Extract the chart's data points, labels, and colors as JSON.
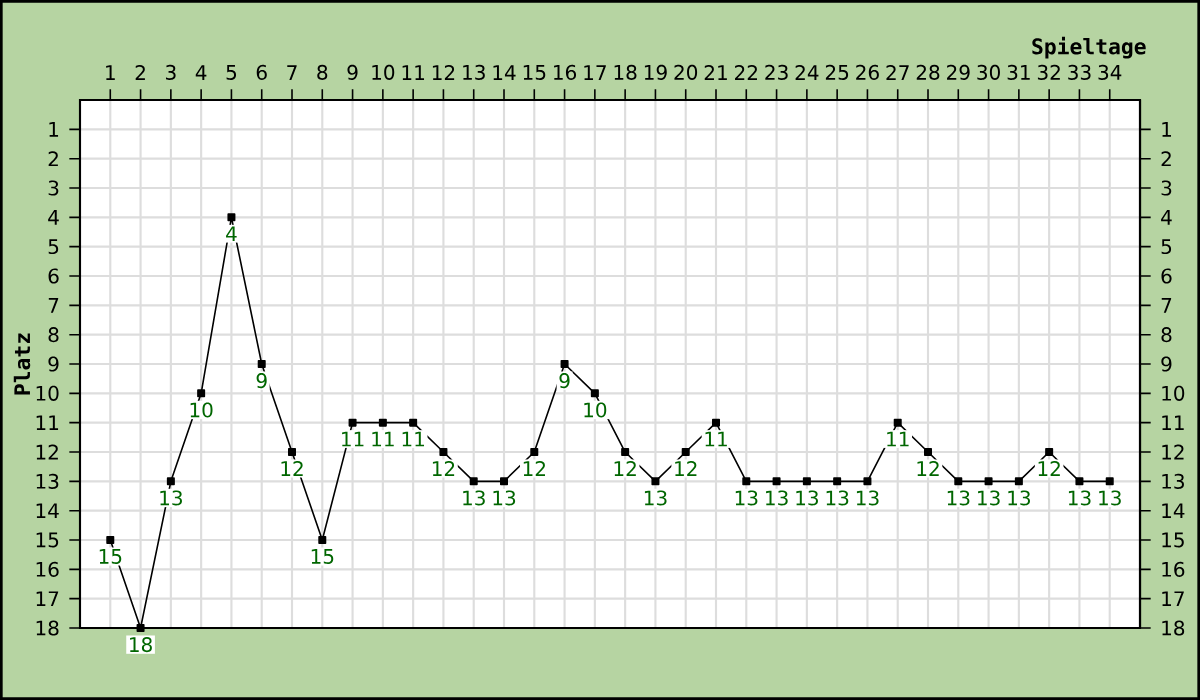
{
  "chart_data": {
    "type": "line",
    "xlabel": "Spieltage",
    "ylabel": "Platz",
    "x": [
      1,
      2,
      3,
      4,
      5,
      6,
      7,
      8,
      9,
      10,
      11,
      12,
      13,
      14,
      15,
      16,
      17,
      18,
      19,
      20,
      21,
      22,
      23,
      24,
      25,
      26,
      27,
      28,
      29,
      30,
      31,
      32,
      33,
      34
    ],
    "series": [
      {
        "color": "#000000",
        "values": [
          15,
          18,
          13,
          10,
          4,
          9,
          12,
          15,
          11,
          11,
          11,
          12,
          13,
          13,
          12,
          9,
          10,
          12,
          13,
          12,
          11,
          13,
          13,
          13,
          13,
          13,
          11,
          12,
          13,
          13,
          13,
          12,
          13,
          13
        ]
      }
    ],
    "xlim": [
      0,
      35
    ],
    "ylim": [
      18,
      0
    ],
    "xticks": [
      1,
      2,
      3,
      4,
      5,
      6,
      7,
      8,
      9,
      10,
      11,
      12,
      13,
      14,
      15,
      16,
      17,
      18,
      19,
      20,
      21,
      22,
      23,
      24,
      25,
      26,
      27,
      28,
      29,
      30,
      31,
      32,
      33,
      34
    ],
    "yticks": [
      1,
      2,
      3,
      4,
      5,
      6,
      7,
      8,
      9,
      10,
      11,
      12,
      13,
      14,
      15,
      16,
      17,
      18
    ],
    "y2lim": [
      18,
      0
    ],
    "y2ticks": [
      1,
      2,
      3,
      4,
      5,
      6,
      7,
      8,
      9,
      10,
      11,
      12,
      13,
      14,
      15,
      16,
      17,
      18
    ],
    "grid": true,
    "marker": "square",
    "line_style": "solid",
    "data_labels": true
  }
}
